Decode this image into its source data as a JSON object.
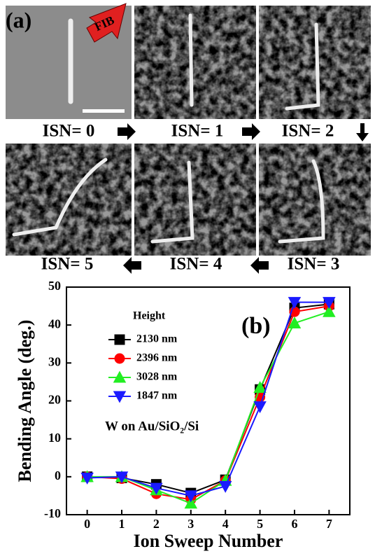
{
  "panel_a": {
    "label": "(a)",
    "fib": "FIB",
    "frames": [
      "ISN= 0",
      "ISN= 1",
      "ISN= 2",
      "ISN= 3",
      "ISN= 4",
      "ISN= 5"
    ]
  },
  "chart_data": {
    "type": "line",
    "panel_label": "(b)",
    "x_label": "Ion Sweep Number",
    "y_label": "Bending Angle (deg.)",
    "legend_title": "Height",
    "annotation": "W on Au/SiO₂/Si",
    "x": [
      0,
      1,
      2,
      3,
      4,
      5,
      6,
      7
    ],
    "xlim": [
      -0.6,
      7.6
    ],
    "xticks": [
      0,
      1,
      2,
      3,
      4,
      5,
      6,
      7
    ],
    "ylim": [
      -10,
      50
    ],
    "yticks": [
      -10,
      0,
      10,
      20,
      30,
      40,
      50
    ],
    "series": [
      {
        "name": "2130 nm",
        "color": "#000000",
        "marker": "square",
        "values": [
          0,
          -0.3,
          -2,
          -4.3,
          -0.8,
          23,
          44.5,
          45.5
        ]
      },
      {
        "name": "2396 nm",
        "color": "#ff0000",
        "marker": "circle",
        "values": [
          0,
          -0.5,
          -4.5,
          -6,
          -1,
          21,
          43.5,
          45
        ]
      },
      {
        "name": "3028 nm",
        "color": "#22ee22",
        "marker": "triangle-up",
        "values": [
          0,
          0,
          -3.5,
          -7,
          -1,
          23.5,
          40.5,
          43.5
        ]
      },
      {
        "name": "1847 nm",
        "color": "#1a1aff",
        "marker": "triangle-down",
        "values": [
          -0.3,
          0,
          -3,
          -5,
          -2.5,
          18.5,
          46,
          46
        ]
      }
    ]
  }
}
